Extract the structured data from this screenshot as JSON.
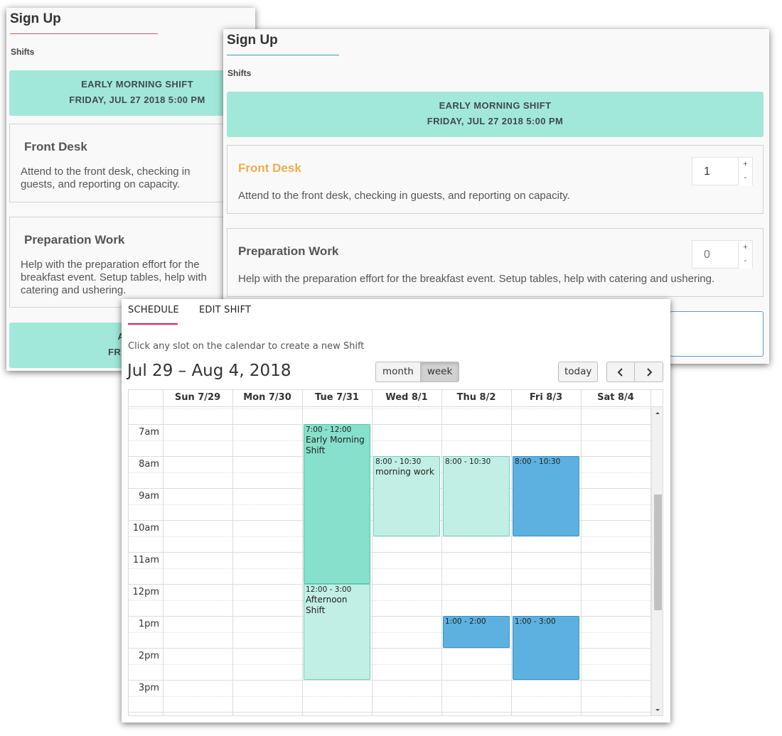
{
  "panel_back": {
    "title": "Sign Up",
    "subtitle": "Shifts",
    "banner1": [
      "EARLY MORNING SHIFT",
      "FRIDAY, JUL 27 2018 5:00 PM"
    ],
    "card1": {
      "title": "Front Desk",
      "desc": [
        "Attend to the front desk, checking in",
        "guests, and reporting on capacity."
      ]
    },
    "card2": {
      "title": "Preparation Work",
      "desc": [
        "Help with the preparation effort for the",
        "breakfast event. Setup tables, help with",
        "catering and ushering."
      ]
    },
    "banner2": [
      "AFTERN",
      "FRIDAY, JUL"
    ]
  },
  "panel_front": {
    "title": "Sign Up",
    "subtitle": "Shifts",
    "banner": [
      "EARLY MORNING SHIFT",
      "FRIDAY, JUL 27 2018 5:00 PM"
    ],
    "card1": {
      "title": "Front Desk",
      "desc": "Attend to the front desk, checking in guests, and reporting on capacity.",
      "qty": "1"
    },
    "card2": {
      "title": "Preparation Work",
      "desc": "Help with the preparation effort for the breakfast event. Setup tables, help with catering and ushering.",
      "qty": "0"
    },
    "stepper": {
      "plus": "+",
      "minus": "-"
    }
  },
  "schedule": {
    "tabs": [
      "SCHEDULE",
      "EDIT SHIFT"
    ],
    "hint": "Click any slot on the calendar to create a new Shift",
    "range": "Jul 29 – Aug 4, 2018",
    "view_buttons": [
      "month",
      "week"
    ],
    "today": "today",
    "prev_icon": "chevron-left",
    "next_icon": "chevron-right",
    "days": [
      "Sun 7/29",
      "Mon 7/30",
      "Tue 7/31",
      "Wed 8/1",
      "Thu 8/2",
      "Fri 8/3",
      "Sat 8/4"
    ],
    "times": [
      "7am",
      "8am",
      "9am",
      "10am",
      "11am",
      "12pm",
      "1pm",
      "2pm",
      "3pm"
    ],
    "events": [
      {
        "time": "7:00 - 12:00",
        "title": "Early Morning Shift"
      },
      {
        "time": "12:00 - 3:00",
        "title": "Afternoon Shift"
      },
      {
        "time": "8:00 - 10:30",
        "title": "morning work"
      },
      {
        "time": "8:00 - 10:30",
        "title": ""
      },
      {
        "time": "8:00 - 10:30",
        "title": ""
      },
      {
        "time": "1:00 - 2:00",
        "title": ""
      },
      {
        "time": "1:00 - 3:00",
        "title": ""
      }
    ]
  },
  "colors": {
    "banner": "#a2e8d8",
    "accent_orange": "#f0ad4e",
    "tab_underline": "#d81b60",
    "event_green_dark": "#86e0cc",
    "event_green_light": "#c2efe5",
    "event_blue": "#5db1e1"
  }
}
